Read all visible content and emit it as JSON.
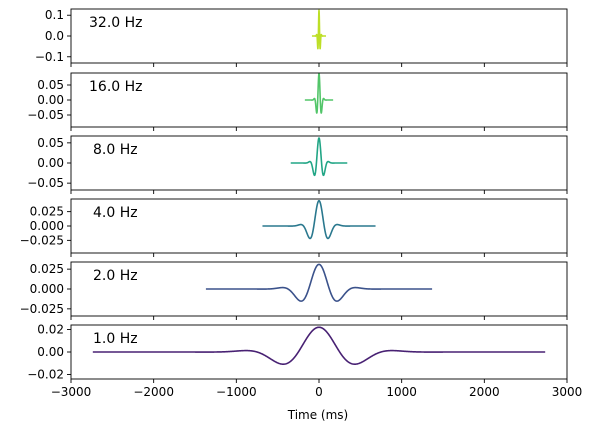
{
  "chart_data": {
    "type": "line",
    "xlabel": "Time (ms)",
    "xlim": [
      -3000,
      3000
    ],
    "x_ticks": [
      "−3000",
      "−2000",
      "−1000",
      "0",
      "1000",
      "2000",
      "3000"
    ],
    "x_tick_values": [
      -3000,
      -2000,
      -1000,
      0,
      1000,
      2000,
      3000
    ],
    "panels": [
      {
        "label": "32.0 Hz",
        "freq": 32.0,
        "amplitude": 0.124,
        "half_width_ms": 85,
        "color": "#bddf26",
        "ylim": [
          -0.13,
          0.13
        ],
        "yticks": [
          0.1,
          0.0,
          -0.1
        ],
        "ytick_labels": [
          "0.1",
          "0.0",
          "−0.1"
        ]
      },
      {
        "label": "16.0 Hz",
        "freq": 16.0,
        "amplitude": 0.088,
        "half_width_ms": 171,
        "color": "#52c569",
        "ylim": [
          -0.09,
          0.09
        ],
        "yticks": [
          0.05,
          0.0,
          -0.05
        ],
        "ytick_labels": [
          "0.05",
          "0.00",
          "−0.05"
        ]
      },
      {
        "label": "8.0 Hz",
        "freq": 8.0,
        "amplitude": 0.062,
        "half_width_ms": 342,
        "color": "#21a585",
        "ylim": [
          -0.067,
          0.067
        ],
        "yticks": [
          0.05,
          0.0,
          -0.05
        ],
        "ytick_labels": [
          "0.05",
          "0.00",
          "−0.05"
        ]
      },
      {
        "label": "4.0 Hz",
        "freq": 4.0,
        "amplitude": 0.044,
        "half_width_ms": 684,
        "color": "#2a788e",
        "ylim": [
          -0.047,
          0.047
        ],
        "yticks": [
          0.025,
          0.0,
          -0.025
        ],
        "ytick_labels": [
          "0.025",
          "0.000",
          "−0.025"
        ]
      },
      {
        "label": "2.0 Hz",
        "freq": 2.0,
        "amplitude": 0.031,
        "half_width_ms": 1368,
        "color": "#3b528b",
        "ylim": [
          -0.034,
          0.034
        ],
        "yticks": [
          0.025,
          0.0,
          -0.025
        ],
        "ytick_labels": [
          "0.025",
          "0.000",
          "−0.025"
        ]
      },
      {
        "label": "1.0 Hz",
        "freq": 1.0,
        "amplitude": 0.022,
        "half_width_ms": 2736,
        "color": "#482173",
        "ylim": [
          -0.024,
          0.024
        ],
        "yticks": [
          0.02,
          0.0,
          -0.02
        ],
        "ytick_labels": [
          "0.02",
          "0.00",
          "−0.02"
        ]
      }
    ]
  }
}
